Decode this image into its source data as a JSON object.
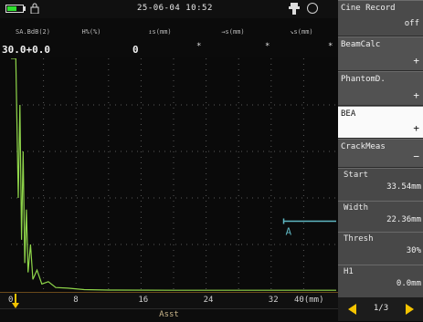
{
  "status": {
    "datetime": "25-06-04 10:52",
    "battery_level": 0.65,
    "colors": {
      "battery": "#2ee02e",
      "text": "#e8e8e8"
    }
  },
  "measurements": {
    "labels": [
      "SA.BdB(2)",
      "H%(%)",
      "↥s(mm)",
      "→s(mm)",
      "↘s(mm)"
    ],
    "gain": "30.0+0.0",
    "h_value": "0",
    "placeholders": [
      "*",
      "*",
      "*"
    ]
  },
  "plot": {
    "x_ticks": [
      "0",
      "8",
      "16",
      "24",
      "32",
      "40(mm)"
    ],
    "x_range": [
      0,
      40
    ],
    "y_range": [
      0,
      100
    ],
    "grid": true,
    "trace_color": "#8fd64a",
    "gate": {
      "start_mm": 33.54,
      "width_mm": 22.36,
      "threshold_pct": 30,
      "label": "A",
      "color": "#5fb7c2"
    }
  },
  "footer": {
    "label": "Asst"
  },
  "menu": {
    "cine_record": {
      "label": "Cine Record",
      "value": "off"
    },
    "items": [
      {
        "label": "BeamCalc",
        "value": "+"
      },
      {
        "label": "PhantomD.",
        "value": "+"
      },
      {
        "label": "BEA",
        "value": "+"
      },
      {
        "label": "CrackMeas",
        "value": "−"
      }
    ],
    "params": [
      {
        "label": "Start",
        "value": "33.54mm"
      },
      {
        "label": "Width",
        "value": "22.36mm"
      },
      {
        "label": "Thresh",
        "value": "30%"
      },
      {
        "label": "H1",
        "value": "0.0mm"
      }
    ],
    "pager": {
      "text": "1/3"
    },
    "colors": {
      "accent": "#f5c400",
      "panel": "#525252",
      "selected": "#fafafa"
    }
  }
}
